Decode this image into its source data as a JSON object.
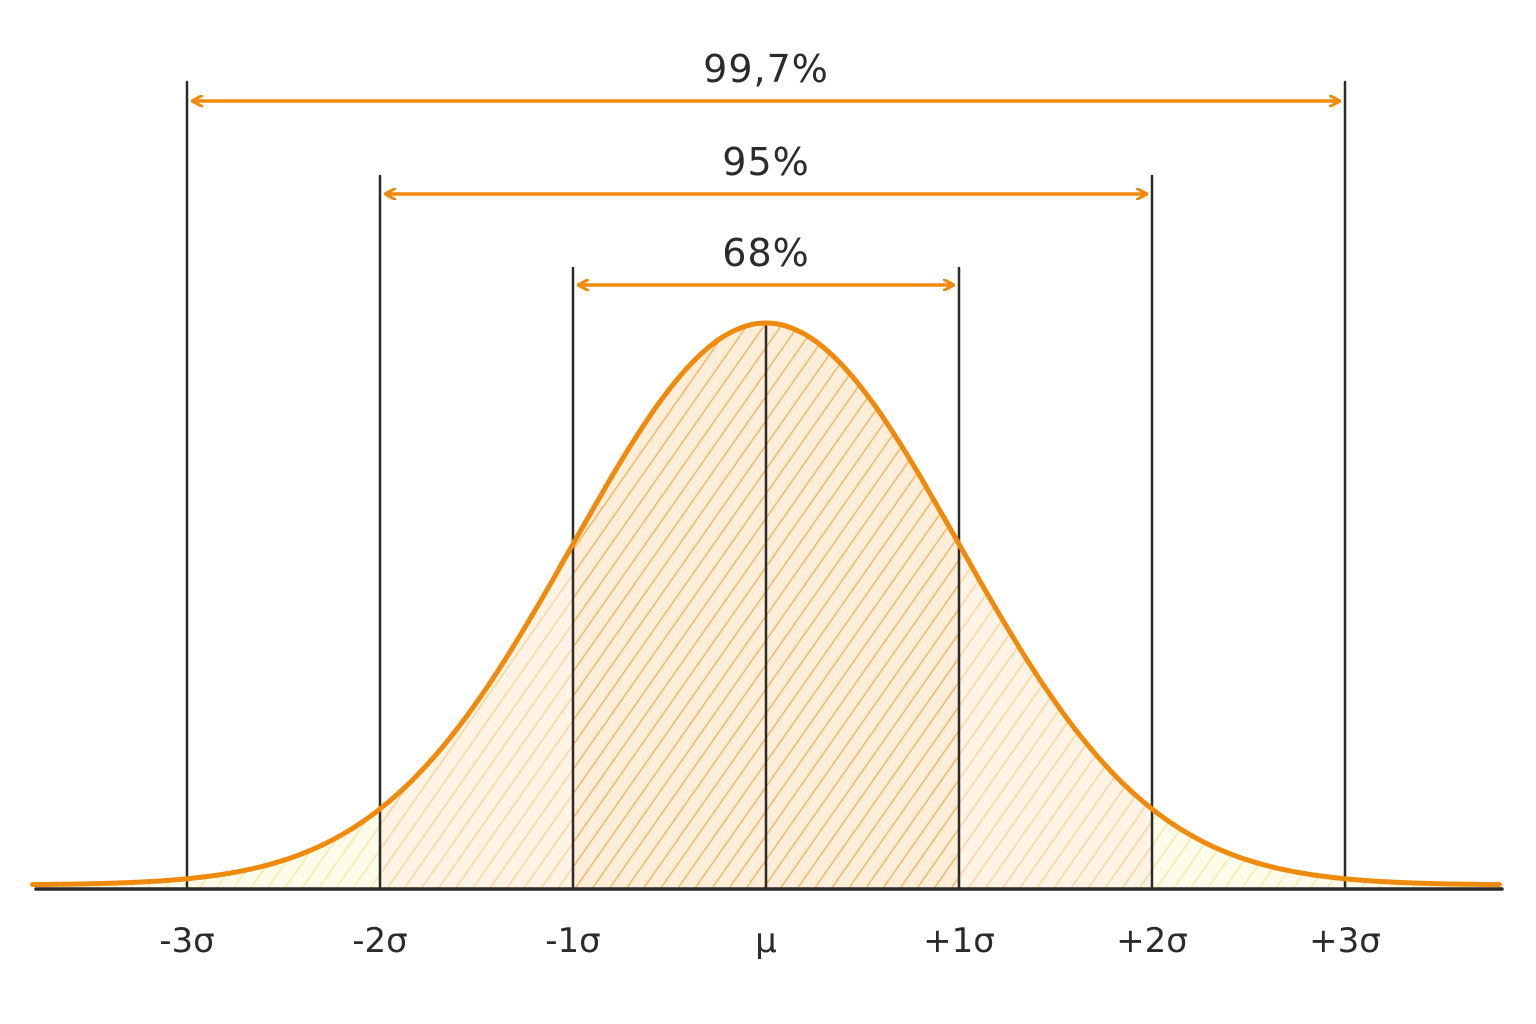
{
  "chart_data": {
    "type": "area",
    "distribution": "normal",
    "xlim": [
      -3.8,
      3.8
    ],
    "ticks": [
      {
        "value": -3,
        "label": "-3σ"
      },
      {
        "value": -2,
        "label": "-2σ"
      },
      {
        "value": -1,
        "label": "-1σ"
      },
      {
        "value": 0,
        "label": "μ"
      },
      {
        "value": 1,
        "label": "+1σ"
      },
      {
        "value": 2,
        "label": "+2σ"
      },
      {
        "value": 3,
        "label": "+3σ"
      }
    ],
    "intervals": [
      {
        "from": -3,
        "to": 3,
        "label": "99,7%"
      },
      {
        "from": -2,
        "to": 2,
        "label": "95%"
      },
      {
        "from": -1,
        "to": 1,
        "label": "68%"
      }
    ],
    "grid": false,
    "colors": {
      "curve": "#f08a0c",
      "arrow": "#f08a0c",
      "inner_band": "#f39a2e",
      "middle_band": "#f7c46f",
      "outer_band": "#f3ea8a",
      "ink": "#2b2b2b"
    }
  }
}
